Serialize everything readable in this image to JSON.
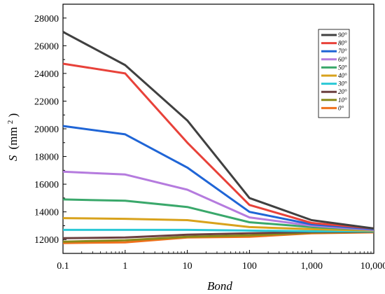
{
  "chart_data": {
    "type": "line",
    "xlabel": "Bond",
    "ylabel_var": "S",
    "ylabel_unit": "(mm",
    "ylabel_sup": "2",
    "ylabel_close": ")",
    "x_scale": "log",
    "x": [
      0.1,
      1,
      10,
      100,
      1000,
      10000
    ],
    "x_tick_labels": [
      "0.1",
      "1",
      "10",
      "100",
      "1,000",
      "10,000"
    ],
    "ylim": [
      11000,
      29000
    ],
    "y_ticks": [
      12000,
      14000,
      16000,
      18000,
      20000,
      22000,
      24000,
      26000,
      28000
    ],
    "y_tick_labels": [
      "12000",
      "14000",
      "16000",
      "18000",
      "20000",
      "22000",
      "24000",
      "26000",
      "28000"
    ],
    "grid": false,
    "legend_position": "top-right",
    "series": [
      {
        "name": "90°",
        "color": "#404040",
        "values": [
          27000,
          24600,
          20600,
          15000,
          13400,
          12800
        ]
      },
      {
        "name": "80°",
        "color": "#e8423a",
        "values": [
          24700,
          24000,
          19000,
          14500,
          13200,
          12800
        ]
      },
      {
        "name": "70°",
        "color": "#1f65d6",
        "values": [
          20200,
          19600,
          17200,
          14000,
          13100,
          12750
        ]
      },
      {
        "name": "60°",
        "color": "#b57bde",
        "values": [
          16900,
          16700,
          15600,
          13600,
          13000,
          12700
        ]
      },
      {
        "name": "50°",
        "color": "#3aa86b",
        "values": [
          14900,
          14800,
          14350,
          13250,
          12900,
          12700
        ]
      },
      {
        "name": "40°",
        "color": "#d8a21c",
        "values": [
          13550,
          13500,
          13400,
          12900,
          12750,
          12650
        ]
      },
      {
        "name": "30°",
        "color": "#2ac8d6",
        "values": [
          12700,
          12700,
          12700,
          12650,
          12600,
          12600
        ]
      },
      {
        "name": "20°",
        "color": "#6b3f3f",
        "values": [
          12100,
          12150,
          12350,
          12450,
          12550,
          12580
        ]
      },
      {
        "name": "10°",
        "color": "#8a8a1a",
        "values": [
          11850,
          11950,
          12200,
          12300,
          12500,
          12550
        ]
      },
      {
        "name": "0°",
        "color": "#f0701c",
        "values": [
          11750,
          11800,
          12150,
          12200,
          12450,
          12520
        ]
      }
    ]
  }
}
